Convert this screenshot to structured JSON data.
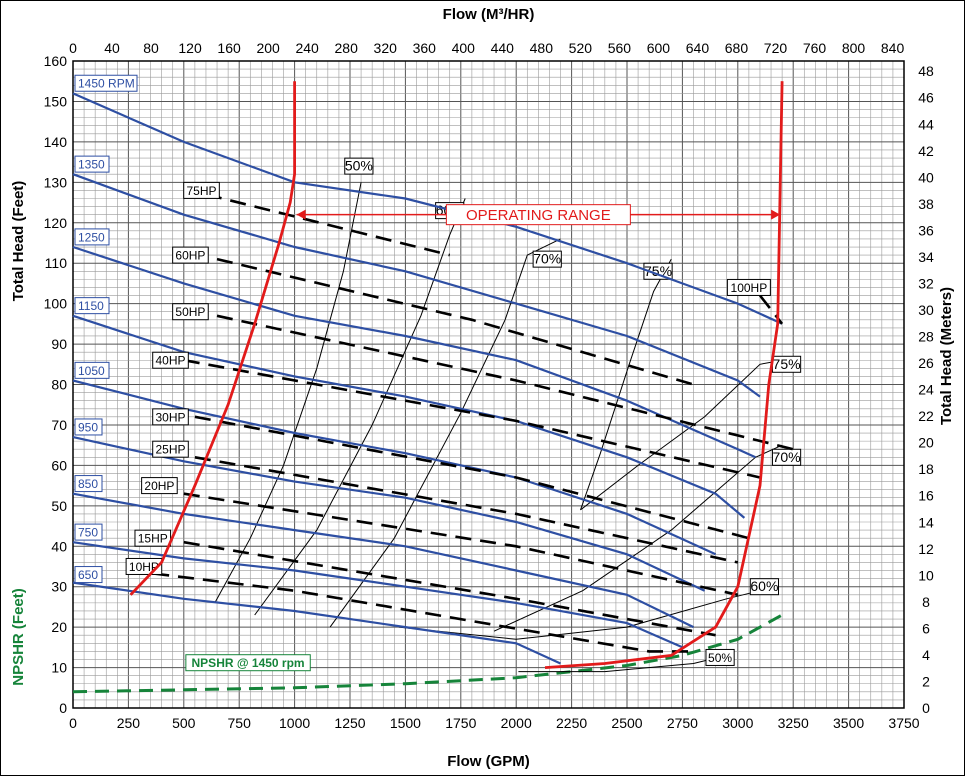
{
  "chart_data": {
    "type": "line",
    "top_axis_title": "Flow (M³/HR)",
    "bottom_axis_title": "Flow (GPM)",
    "left_axis_title": "Total Head (Feet)",
    "right_axis_title": "Total Head (Meters)",
    "npshr_axis_title": "NPSHR (Feet)",
    "xlim": [
      0,
      3750
    ],
    "ylim": [
      0,
      160
    ],
    "x_ticks": [
      "0",
      "250",
      "500",
      "750",
      "1000",
      "1250",
      "1500",
      "1750",
      "2000",
      "2250",
      "2500",
      "2750",
      "3000",
      "3250",
      "3500",
      "3750"
    ],
    "y_ticks": [
      "0",
      "10",
      "20",
      "30",
      "40",
      "50",
      "60",
      "70",
      "80",
      "90",
      "100",
      "110",
      "120",
      "130",
      "140",
      "150",
      "160"
    ],
    "top_ticks": [
      "0",
      "40",
      "80",
      "120",
      "160",
      "200",
      "240",
      "280",
      "320",
      "360",
      "400",
      "440",
      "480",
      "520",
      "560",
      "600",
      "640",
      "680",
      "720",
      "760",
      "800",
      "840"
    ],
    "right_ticks": [
      "0",
      "2",
      "4",
      "6",
      "8",
      "10",
      "12",
      "14",
      "16",
      "18",
      "20",
      "22",
      "24",
      "26",
      "28",
      "30",
      "32",
      "34",
      "36",
      "38",
      "40",
      "42",
      "44",
      "46",
      "48"
    ],
    "grid": true,
    "operating_range": {
      "label": "OPERATING RANGE",
      "from": 1000,
      "to": 3200,
      "y": 122
    },
    "speed_curves": [
      {
        "label": "1450 RPM",
        "points": [
          [
            0,
            152
          ],
          [
            500,
            140
          ],
          [
            1000,
            130
          ],
          [
            1500,
            126
          ],
          [
            2000,
            119
          ],
          [
            2500,
            110
          ],
          [
            3000,
            100
          ],
          [
            3200,
            95
          ]
        ]
      },
      {
        "label": "1350",
        "points": [
          [
            0,
            132
          ],
          [
            500,
            122
          ],
          [
            1000,
            114
          ],
          [
            1500,
            108
          ],
          [
            2000,
            100
          ],
          [
            2500,
            92
          ],
          [
            3000,
            81
          ],
          [
            3100,
            77
          ]
        ]
      },
      {
        "label": "1250",
        "points": [
          [
            0,
            114
          ],
          [
            500,
            105
          ],
          [
            1000,
            97
          ],
          [
            1500,
            92
          ],
          [
            2000,
            86
          ],
          [
            2500,
            76
          ],
          [
            3000,
            64
          ],
          [
            3080,
            62
          ]
        ]
      },
      {
        "label": "1150",
        "points": [
          [
            0,
            97
          ],
          [
            500,
            88
          ],
          [
            1000,
            82
          ],
          [
            1500,
            77
          ],
          [
            2000,
            71
          ],
          [
            2500,
            62
          ],
          [
            2900,
            53
          ],
          [
            3030,
            47
          ]
        ]
      },
      {
        "label": "1050",
        "points": [
          [
            0,
            81
          ],
          [
            500,
            74
          ],
          [
            1000,
            68
          ],
          [
            1500,
            63
          ],
          [
            2000,
            57
          ],
          [
            2500,
            48
          ],
          [
            2900,
            38
          ]
        ]
      },
      {
        "label": "950",
        "points": [
          [
            0,
            67
          ],
          [
            500,
            61
          ],
          [
            1000,
            56
          ],
          [
            1500,
            52
          ],
          [
            2000,
            46
          ],
          [
            2500,
            38
          ],
          [
            2850,
            29
          ]
        ]
      },
      {
        "label": "850",
        "points": [
          [
            0,
            53
          ],
          [
            500,
            48
          ],
          [
            1000,
            44
          ],
          [
            1500,
            40
          ],
          [
            2000,
            34
          ],
          [
            2500,
            28
          ],
          [
            2800,
            20
          ]
        ]
      },
      {
        "label": "750",
        "points": [
          [
            0,
            41
          ],
          [
            500,
            37
          ],
          [
            1000,
            34
          ],
          [
            1500,
            30
          ],
          [
            2000,
            26
          ],
          [
            2500,
            21
          ],
          [
            2750,
            15
          ]
        ]
      },
      {
        "label": "650",
        "points": [
          [
            0,
            31
          ],
          [
            500,
            27
          ],
          [
            1000,
            24
          ],
          [
            1500,
            20
          ],
          [
            2000,
            16
          ],
          [
            2200,
            11
          ]
        ]
      }
    ],
    "hp_lines": [
      {
        "label": "75HP",
        "points": [
          [
            600,
            127
          ],
          [
            1700,
            112
          ]
        ]
      },
      {
        "label": "60HP",
        "points": [
          [
            650,
            111
          ],
          [
            1800,
            96
          ],
          [
            2800,
            80
          ]
        ]
      },
      {
        "label": "50HP",
        "points": [
          [
            650,
            97
          ],
          [
            2000,
            81
          ],
          [
            3250,
            64
          ]
        ]
      },
      {
        "label": "40HP",
        "points": [
          [
            500,
            86
          ],
          [
            2000,
            71
          ],
          [
            3100,
            57
          ]
        ]
      },
      {
        "label": "30HP",
        "points": [
          [
            550,
            72
          ],
          [
            2000,
            57
          ],
          [
            3050,
            42
          ]
        ]
      },
      {
        "label": "25HP",
        "points": [
          [
            550,
            62
          ],
          [
            2000,
            48
          ],
          [
            3000,
            36
          ]
        ]
      },
      {
        "label": "20HP",
        "points": [
          [
            500,
            53
          ],
          [
            2000,
            40
          ],
          [
            3000,
            28
          ]
        ]
      },
      {
        "label": "15HP",
        "points": [
          [
            500,
            41
          ],
          [
            2000,
            27
          ],
          [
            2900,
            18
          ]
        ]
      },
      {
        "label": "10HP",
        "points": [
          [
            250,
            34
          ],
          [
            1000,
            29
          ],
          [
            2600,
            14
          ],
          [
            2800,
            14
          ]
        ]
      },
      {
        "label": "100HP",
        "points": [
          [
            3100,
            102
          ],
          [
            3200,
            95
          ]
        ]
      }
    ],
    "efficiency_curves": [
      {
        "label": "50%",
        "points": [
          [
            640,
            26
          ],
          [
            800,
            42
          ],
          [
            950,
            60
          ],
          [
            1100,
            84
          ],
          [
            1220,
            108
          ],
          [
            1300,
            130
          ]
        ]
      },
      {
        "label": "60%",
        "points": [
          [
            820,
            23
          ],
          [
            1100,
            44
          ],
          [
            1350,
            70
          ],
          [
            1570,
            97
          ],
          [
            1700,
            117
          ],
          [
            1770,
            126
          ]
        ]
      },
      {
        "label": "70%",
        "points": [
          [
            1160,
            20
          ],
          [
            1450,
            42
          ],
          [
            1750,
            73
          ],
          [
            1950,
            96
          ],
          [
            2050,
            112
          ],
          [
            2200,
            116
          ]
        ]
      },
      {
        "label": "75%",
        "points": [
          [
            2290,
            49
          ],
          [
            2380,
            63
          ],
          [
            2510,
            85
          ],
          [
            2620,
            103
          ],
          [
            2700,
            111
          ]
        ]
      },
      {
        "label": "75%",
        "points": [
          [
            2290,
            49
          ],
          [
            2550,
            60
          ],
          [
            2850,
            72
          ],
          [
            3100,
            85
          ],
          [
            3200,
            86
          ]
        ]
      },
      {
        "label": "70%",
        "points": [
          [
            1900,
            19
          ],
          [
            2300,
            29
          ],
          [
            2700,
            44
          ],
          [
            3080,
            62
          ],
          [
            3200,
            65
          ]
        ]
      },
      {
        "label": "60%",
        "points": [
          [
            1470,
            20
          ],
          [
            2000,
            17
          ],
          [
            2500,
            20
          ],
          [
            2950,
            27
          ],
          [
            3100,
            29
          ]
        ]
      },
      {
        "label": "50%",
        "points": [
          [
            2010,
            9
          ],
          [
            2400,
            9
          ],
          [
            2800,
            11
          ],
          [
            2950,
            13
          ]
        ]
      }
    ],
    "operating_boundary": {
      "points": [
        [
          260,
          28
        ],
        [
          400,
          36
        ],
        [
          550,
          55
        ],
        [
          700,
          75
        ],
        [
          820,
          95
        ],
        [
          930,
          115
        ],
        [
          980,
          125
        ],
        [
          1000,
          132
        ],
        [
          1000,
          155
        ],
        "|",
        [
          2130,
          10
        ],
        [
          2400,
          11
        ],
        [
          2700,
          13
        ],
        [
          2900,
          20
        ],
        [
          3000,
          30
        ],
        [
          3100,
          55
        ],
        [
          3140,
          80
        ],
        [
          3180,
          95
        ],
        [
          3200,
          155
        ]
      ]
    },
    "npshr": {
      "label": "NPSHR @ 1450 rpm",
      "points": [
        [
          0,
          4
        ],
        [
          500,
          4.5
        ],
        [
          1000,
          5
        ],
        [
          1500,
          6
        ],
        [
          2000,
          7.5
        ],
        [
          2500,
          10.5
        ],
        [
          2750,
          13
        ],
        [
          3000,
          17
        ],
        [
          3200,
          23
        ]
      ]
    }
  }
}
